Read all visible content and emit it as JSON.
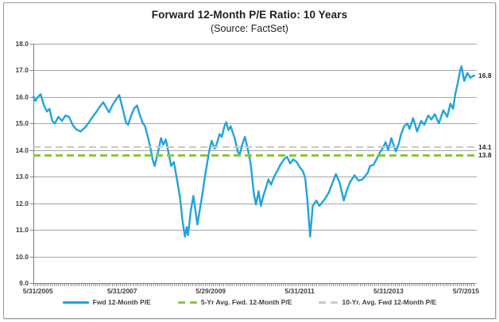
{
  "title": "Forward 12-Month P/E Ratio: 10 Years",
  "subtitle": "(Source: FactSet)",
  "colors": {
    "line": "#21a3de",
    "avg5": "#8cc63e",
    "avg10": "#c9c9c9",
    "grid": "#a6a6a6",
    "axis": "#7f7f7f",
    "text": "#3f3f3f",
    "frame": "#9d9d9d"
  },
  "legend": [
    {
      "label": "Fwd 12-Month P/E",
      "style": "solid",
      "color": "#21a3de"
    },
    {
      "label": "5-Yr Avg. Fwd. 12-Month P/E",
      "style": "dashed",
      "color": "#8cc63e"
    },
    {
      "label": "10-Yr. Avg. Fwd 12-Month P/E",
      "style": "dashed",
      "color": "#c9c9c9"
    }
  ],
  "chart_data": {
    "type": "line",
    "title": "Forward 12-Month P/E Ratio: 10 Years",
    "subtitle": "(Source: FactSet)",
    "ylim": [
      9.0,
      18.0
    ],
    "ytick_step": 1.0,
    "ytick_labels": [
      "18.0",
      "17.0",
      "16.0",
      "15.0",
      "14.0",
      "13.0",
      "12.0",
      "11.0",
      "10.0",
      "9.0"
    ],
    "grid": "horizontal",
    "legend_position": "bottom",
    "x_unit": "decimal_year",
    "x_range": [
      2005.416,
      2015.35
    ],
    "xticks": [
      {
        "label": "5/31/2005",
        "year": 2005.416
      },
      {
        "label": "5/31/2007",
        "year": 2007.416
      },
      {
        "label": "5/29/2009",
        "year": 2009.41
      },
      {
        "label": "5/31/2011",
        "year": 2011.416
      },
      {
        "label": "5/31/2013",
        "year": 2013.416
      },
      {
        "label": "5/7/2015",
        "year": 2015.35
      }
    ],
    "series": [
      {
        "name": "Fwd 12-Month P/E",
        "type": "line",
        "color": "#21a3de",
        "end_label": "16.8",
        "points": [
          [
            2005.42,
            16.0
          ],
          [
            2005.46,
            15.85
          ],
          [
            2005.52,
            16.0
          ],
          [
            2005.58,
            16.1
          ],
          [
            2005.65,
            15.7
          ],
          [
            2005.72,
            15.45
          ],
          [
            2005.78,
            15.55
          ],
          [
            2005.84,
            15.1
          ],
          [
            2005.9,
            15.0
          ],
          [
            2005.98,
            15.25
          ],
          [
            2006.06,
            15.1
          ],
          [
            2006.14,
            15.3
          ],
          [
            2006.22,
            15.25
          ],
          [
            2006.3,
            14.95
          ],
          [
            2006.38,
            14.78
          ],
          [
            2006.48,
            14.7
          ],
          [
            2006.58,
            14.85
          ],
          [
            2006.67,
            15.05
          ],
          [
            2006.75,
            15.25
          ],
          [
            2006.82,
            15.4
          ],
          [
            2006.9,
            15.6
          ],
          [
            2006.99,
            15.8
          ],
          [
            2007.06,
            15.6
          ],
          [
            2007.12,
            15.42
          ],
          [
            2007.2,
            15.7
          ],
          [
            2007.28,
            15.9
          ],
          [
            2007.35,
            16.07
          ],
          [
            2007.43,
            15.55
          ],
          [
            2007.5,
            15.05
          ],
          [
            2007.55,
            14.95
          ],
          [
            2007.62,
            15.3
          ],
          [
            2007.68,
            15.55
          ],
          [
            2007.75,
            15.68
          ],
          [
            2007.82,
            15.3
          ],
          [
            2007.87,
            15.05
          ],
          [
            2007.93,
            14.9
          ],
          [
            2008.0,
            14.45
          ],
          [
            2008.05,
            14.1
          ],
          [
            2008.1,
            13.65
          ],
          [
            2008.15,
            13.4
          ],
          [
            2008.22,
            13.9
          ],
          [
            2008.29,
            14.45
          ],
          [
            2008.34,
            14.2
          ],
          [
            2008.4,
            14.4
          ],
          [
            2008.46,
            13.9
          ],
          [
            2008.52,
            13.4
          ],
          [
            2008.58,
            13.55
          ],
          [
            2008.65,
            12.9
          ],
          [
            2008.72,
            12.2
          ],
          [
            2008.78,
            11.3
          ],
          [
            2008.83,
            10.75
          ],
          [
            2008.87,
            11.1
          ],
          [
            2008.9,
            10.8
          ],
          [
            2008.96,
            11.7
          ],
          [
            2009.02,
            12.28
          ],
          [
            2009.07,
            11.7
          ],
          [
            2009.11,
            11.2
          ],
          [
            2009.17,
            11.8
          ],
          [
            2009.22,
            12.3
          ],
          [
            2009.28,
            13.0
          ],
          [
            2009.33,
            13.5
          ],
          [
            2009.38,
            14.0
          ],
          [
            2009.43,
            14.35
          ],
          [
            2009.5,
            14.05
          ],
          [
            2009.56,
            14.3
          ],
          [
            2009.61,
            14.6
          ],
          [
            2009.66,
            14.5
          ],
          [
            2009.72,
            14.9
          ],
          [
            2009.76,
            15.05
          ],
          [
            2009.81,
            14.75
          ],
          [
            2009.86,
            14.9
          ],
          [
            2009.95,
            14.45
          ],
          [
            2010.02,
            13.95
          ],
          [
            2010.06,
            13.8
          ],
          [
            2010.12,
            14.2
          ],
          [
            2010.18,
            14.5
          ],
          [
            2010.25,
            14.0
          ],
          [
            2010.31,
            13.5
          ],
          [
            2010.38,
            12.4
          ],
          [
            2010.43,
            11.95
          ],
          [
            2010.49,
            12.45
          ],
          [
            2010.54,
            11.9
          ],
          [
            2010.6,
            12.3
          ],
          [
            2010.65,
            12.55
          ],
          [
            2010.71,
            12.9
          ],
          [
            2010.77,
            12.7
          ],
          [
            2010.84,
            13.0
          ],
          [
            2010.92,
            13.25
          ],
          [
            2010.98,
            13.45
          ],
          [
            2011.06,
            13.65
          ],
          [
            2011.13,
            13.75
          ],
          [
            2011.2,
            13.5
          ],
          [
            2011.27,
            13.65
          ],
          [
            2011.35,
            13.55
          ],
          [
            2011.42,
            13.35
          ],
          [
            2011.49,
            13.2
          ],
          [
            2011.54,
            12.95
          ],
          [
            2011.59,
            12.1
          ],
          [
            2011.65,
            10.75
          ],
          [
            2011.71,
            11.9
          ],
          [
            2011.79,
            12.1
          ],
          [
            2011.86,
            11.9
          ],
          [
            2011.93,
            12.05
          ],
          [
            2011.98,
            12.15
          ],
          [
            2012.07,
            12.4
          ],
          [
            2012.15,
            12.75
          ],
          [
            2012.23,
            13.1
          ],
          [
            2012.32,
            12.75
          ],
          [
            2012.41,
            12.1
          ],
          [
            2012.48,
            12.5
          ],
          [
            2012.55,
            12.8
          ],
          [
            2012.65,
            13.05
          ],
          [
            2012.74,
            12.85
          ],
          [
            2012.83,
            12.9
          ],
          [
            2012.95,
            13.15
          ],
          [
            2013.0,
            13.4
          ],
          [
            2013.08,
            13.45
          ],
          [
            2013.16,
            13.7
          ],
          [
            2013.22,
            13.9
          ],
          [
            2013.28,
            14.05
          ],
          [
            2013.35,
            14.3
          ],
          [
            2013.41,
            14.0
          ],
          [
            2013.48,
            14.45
          ],
          [
            2013.55,
            14.1
          ],
          [
            2013.58,
            13.95
          ],
          [
            2013.64,
            14.2
          ],
          [
            2013.7,
            14.6
          ],
          [
            2013.77,
            14.9
          ],
          [
            2013.84,
            15.0
          ],
          [
            2013.89,
            14.8
          ],
          [
            2013.97,
            15.2
          ],
          [
            2014.06,
            14.7
          ],
          [
            2014.15,
            15.1
          ],
          [
            2014.22,
            14.95
          ],
          [
            2014.31,
            15.3
          ],
          [
            2014.38,
            15.15
          ],
          [
            2014.46,
            15.35
          ],
          [
            2014.55,
            15.0
          ],
          [
            2014.65,
            15.5
          ],
          [
            2014.74,
            15.25
          ],
          [
            2014.81,
            15.75
          ],
          [
            2014.87,
            15.55
          ],
          [
            2014.92,
            16.1
          ],
          [
            2014.98,
            16.55
          ],
          [
            2015.03,
            17.0
          ],
          [
            2015.06,
            17.15
          ],
          [
            2015.12,
            16.6
          ],
          [
            2015.19,
            16.9
          ],
          [
            2015.26,
            16.72
          ],
          [
            2015.31,
            16.78
          ],
          [
            2015.35,
            16.8
          ]
        ]
      },
      {
        "name": "5-Yr Avg. Fwd. 12-Month P/E",
        "type": "hline",
        "color": "#8cc63e",
        "value": 13.8,
        "label": "13.8"
      },
      {
        "name": "10-Yr. Avg. Fwd 12-Month P/E",
        "type": "hline",
        "color": "#c9c9c9",
        "value": 14.1,
        "label": "14.1"
      }
    ]
  }
}
